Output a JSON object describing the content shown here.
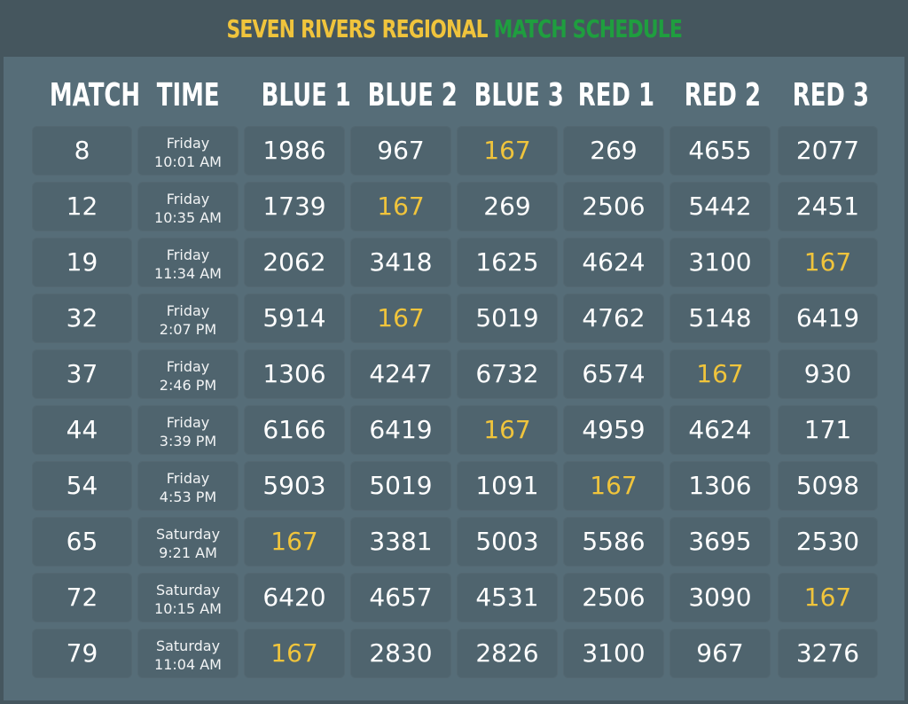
{
  "title": {
    "part1": "SEVEN RIVERS REGIONAL ",
    "part2": "MATCH SCHEDULE"
  },
  "colors": {
    "yellow": "#f0c43c",
    "green": "#1f9e3f",
    "background": "#566d78",
    "cell": "#4f646e"
  },
  "highlight_team": "167",
  "columns": [
    "MATCH",
    "TIME",
    "BLUE 1",
    "BLUE 2",
    "BLUE 3",
    "RED 1",
    "RED 2",
    "RED 3"
  ],
  "rows": [
    {
      "match": "8",
      "day": "Friday",
      "time": "10:01 AM",
      "teams": [
        "1986",
        "967",
        "167",
        "269",
        "4655",
        "2077"
      ]
    },
    {
      "match": "12",
      "day": "Friday",
      "time": "10:35 AM",
      "teams": [
        "1739",
        "167",
        "269",
        "2506",
        "5442",
        "2451"
      ]
    },
    {
      "match": "19",
      "day": "Friday",
      "time": "11:34 AM",
      "teams": [
        "2062",
        "3418",
        "1625",
        "4624",
        "3100",
        "167"
      ]
    },
    {
      "match": "32",
      "day": "Friday",
      "time": "2:07 PM",
      "teams": [
        "5914",
        "167",
        "5019",
        "4762",
        "5148",
        "6419"
      ]
    },
    {
      "match": "37",
      "day": "Friday",
      "time": "2:46 PM",
      "teams": [
        "1306",
        "4247",
        "6732",
        "6574",
        "167",
        "930"
      ]
    },
    {
      "match": "44",
      "day": "Friday",
      "time": "3:39 PM",
      "teams": [
        "6166",
        "6419",
        "167",
        "4959",
        "4624",
        "171"
      ]
    },
    {
      "match": "54",
      "day": "Friday",
      "time": "4:53 PM",
      "teams": [
        "5903",
        "5019",
        "1091",
        "167",
        "1306",
        "5098"
      ]
    },
    {
      "match": "65",
      "day": "Saturday",
      "time": "9:21 AM",
      "teams": [
        "167",
        "3381",
        "5003",
        "5586",
        "3695",
        "2530"
      ]
    },
    {
      "match": "72",
      "day": "Saturday",
      "time": "10:15 AM",
      "teams": [
        "6420",
        "4657",
        "4531",
        "2506",
        "3090",
        "167"
      ]
    },
    {
      "match": "79",
      "day": "Saturday",
      "time": "11:04 AM",
      "teams": [
        "167",
        "2830",
        "2826",
        "3100",
        "967",
        "3276"
      ]
    }
  ]
}
